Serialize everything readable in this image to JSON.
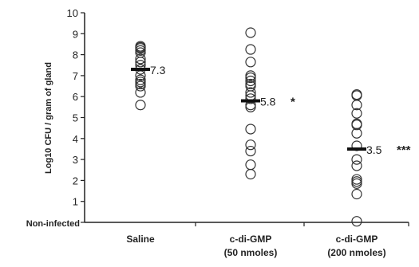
{
  "chart_data": {
    "type": "scatter",
    "ylabel": "Log10 CFU / gram of gland",
    "ylim": [
      0,
      10
    ],
    "y_ticks": [
      "10",
      "9",
      "8",
      "7",
      "6",
      "5",
      "4",
      "3",
      "2",
      "1"
    ],
    "y_baseline_label": "Non-infected",
    "groups": [
      {
        "label": [
          "Saline"
        ],
        "points": [
          8.4,
          8.35,
          8.3,
          8.2,
          8.1,
          7.8,
          7.65,
          7.5,
          7.3,
          7.0,
          6.8,
          6.7,
          6.6,
          6.5,
          6.2,
          5.6
        ],
        "mean": 7.3,
        "mean_label": "7.3",
        "significance": ""
      },
      {
        "label": [
          "c-di-GMP",
          "(50 nmoles)"
        ],
        "points": [
          9.05,
          8.25,
          7.65,
          7.0,
          6.9,
          6.75,
          6.6,
          6.5,
          6.2,
          6.05,
          5.9,
          5.6,
          5.5,
          4.45,
          3.7,
          3.4,
          2.75,
          2.3
        ],
        "mean": 5.8,
        "mean_label": "5.8",
        "significance": "*"
      },
      {
        "label": [
          "c-di-GMP",
          "(200 nmoles)"
        ],
        "points": [
          6.1,
          6.05,
          5.6,
          5.2,
          4.7,
          4.65,
          4.25,
          3.65,
          3.0,
          2.7,
          2.05,
          1.95,
          1.85,
          1.35,
          0.05
        ],
        "mean": 3.5,
        "mean_label": "3.5",
        "significance": "***"
      }
    ]
  }
}
